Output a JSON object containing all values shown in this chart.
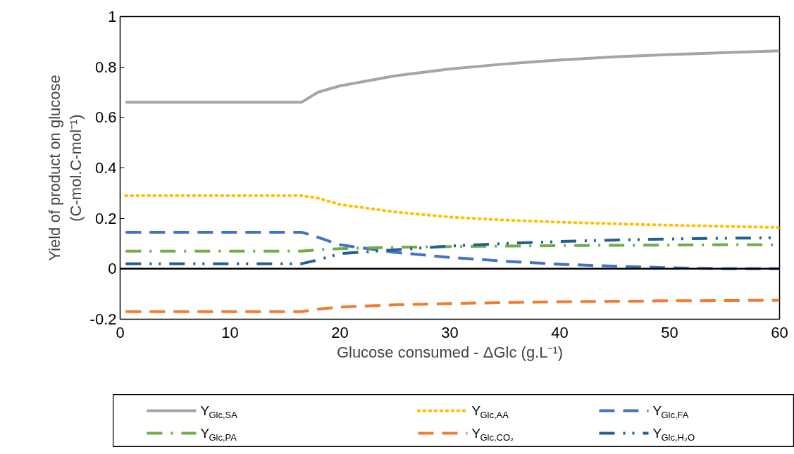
{
  "chart_data": {
    "type": "line",
    "xlabel": "Glucose consumed - ΔGlc (g.L⁻¹)",
    "ylabel": "Yield of product on glucose\n(C-mol.C-mol⁻¹)",
    "x": [
      0.5,
      5,
      10,
      16.5,
      18,
      20,
      25,
      30,
      35,
      40,
      45,
      50,
      55,
      60
    ],
    "series": [
      {
        "name": "Y$_{Glc,SA}$",
        "color": "#a5a5a5",
        "line_style": "solid",
        "values": [
          0.66,
          0.66,
          0.66,
          0.66,
          0.7,
          0.725,
          0.765,
          0.792,
          0.812,
          0.828,
          0.84,
          0.849,
          0.857,
          0.864
        ]
      },
      {
        "name": "Y$_{Glc,AA}$",
        "color": "#ffc000",
        "line_style": "dotted",
        "values": [
          0.29,
          0.29,
          0.29,
          0.29,
          0.28,
          0.255,
          0.225,
          0.205,
          0.193,
          0.185,
          0.178,
          0.173,
          0.168,
          0.164
        ]
      },
      {
        "name": "Y$_{Glc,FA}$",
        "color": "#4472c4",
        "line_style": "dashed",
        "values": [
          0.145,
          0.145,
          0.145,
          0.145,
          0.125,
          0.095,
          0.065,
          0.045,
          0.03,
          0.018,
          0.01,
          0.004,
          0.0,
          0.0
        ]
      },
      {
        "name": "Y$_{Glc,PA}$",
        "color": "#70ad47",
        "line_style": "dashdot",
        "values": [
          0.07,
          0.07,
          0.07,
          0.07,
          0.075,
          0.08,
          0.085,
          0.088,
          0.09,
          0.092,
          0.093,
          0.094,
          0.095,
          0.095
        ]
      },
      {
        "name": "Y$_{Glc,CO₂}$",
        "color": "#ed7d31",
        "line_style": "dashed",
        "values": [
          -0.17,
          -0.17,
          -0.17,
          -0.17,
          -0.16,
          -0.152,
          -0.143,
          -0.138,
          -0.134,
          -0.131,
          -0.129,
          -0.127,
          -0.126,
          -0.125
        ]
      },
      {
        "name": "Y$_{Glc,H₂O}$",
        "color": "#255e91",
        "line_style": "dashdotdot",
        "values": [
          0.02,
          0.02,
          0.02,
          0.02,
          0.035,
          0.06,
          0.075,
          0.09,
          0.1,
          0.108,
          0.114,
          0.118,
          0.121,
          0.123
        ]
      }
    ],
    "xlim": [
      0,
      60
    ],
    "xticks": [
      0,
      10,
      20,
      30,
      40,
      50,
      60
    ],
    "ylim": [
      -0.2,
      1
    ],
    "yticks": [
      -0.2,
      0,
      0.2,
      0.4,
      0.6,
      0.8,
      1
    ],
    "ref_lines": [
      {
        "axis": "y",
        "value": 0,
        "color": "#000000"
      }
    ],
    "grid": false,
    "legend": "bottom",
    "marker": "none"
  }
}
